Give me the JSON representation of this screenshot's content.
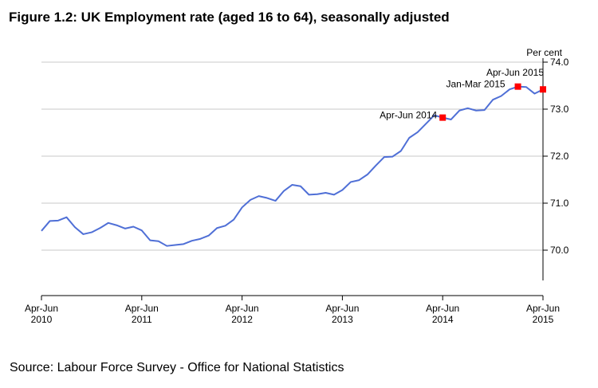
{
  "figure": {
    "title": "Figure 1.2: UK Employment rate (aged 16 to 64), seasonally adjusted",
    "source": "Source: Labour Force Survey - Office for National Statistics"
  },
  "chart_data": {
    "type": "line",
    "title": "Figure 1.2: UK Employment rate (aged 16 to 64), seasonally adjusted",
    "xlabel": "",
    "ylabel": "Per cent",
    "ylim": [
      69.4,
      74.0
    ],
    "yticks": [
      70.0,
      71.0,
      72.0,
      73.0,
      74.0
    ],
    "ytick_labels": [
      "70.0",
      "71.0",
      "72.0",
      "73.0",
      "74.0"
    ],
    "grid": true,
    "line_color": "#4f6fd6",
    "marker_color": "#ff0000",
    "x_start_index": 0,
    "x_end_index": 60,
    "xticks": [
      {
        "index": 0,
        "line1": "Apr-Jun",
        "line2": "2010"
      },
      {
        "index": 12,
        "line1": "Apr-Jun",
        "line2": "2011"
      },
      {
        "index": 24,
        "line1": "Apr-Jun",
        "line2": "2012"
      },
      {
        "index": 36,
        "line1": "Apr-Jun",
        "line2": "2013"
      },
      {
        "index": 48,
        "line1": "Apr-Jun",
        "line2": "2014"
      },
      {
        "index": 60,
        "line1": "Apr-Jun",
        "line2": "2015"
      }
    ],
    "series": [
      {
        "name": "Employment rate",
        "values": [
          70.41,
          70.62,
          70.63,
          70.7,
          70.49,
          70.34,
          70.38,
          70.47,
          70.58,
          70.53,
          70.46,
          70.5,
          70.42,
          70.21,
          70.19,
          70.09,
          70.11,
          70.13,
          70.2,
          70.24,
          70.31,
          70.47,
          70.52,
          70.65,
          70.91,
          71.07,
          71.15,
          71.11,
          71.05,
          71.26,
          71.39,
          71.36,
          71.18,
          71.19,
          71.22,
          71.18,
          71.28,
          71.45,
          71.49,
          71.61,
          71.8,
          71.98,
          71.99,
          72.11,
          72.39,
          72.51,
          72.69,
          72.87,
          72.82,
          72.78,
          72.97,
          73.02,
          72.97,
          72.98,
          73.2,
          73.28,
          73.42,
          73.48,
          73.47,
          73.33,
          73.42
        ]
      }
    ],
    "annotations": [
      {
        "label": "Apr-Jun 2014",
        "index": 48,
        "value": 72.82
      },
      {
        "label": "Jan-Mar 2015",
        "index": 57,
        "value": 73.48
      },
      {
        "label": "Apr-Jun 2015",
        "index": 60,
        "value": 73.42
      }
    ]
  }
}
